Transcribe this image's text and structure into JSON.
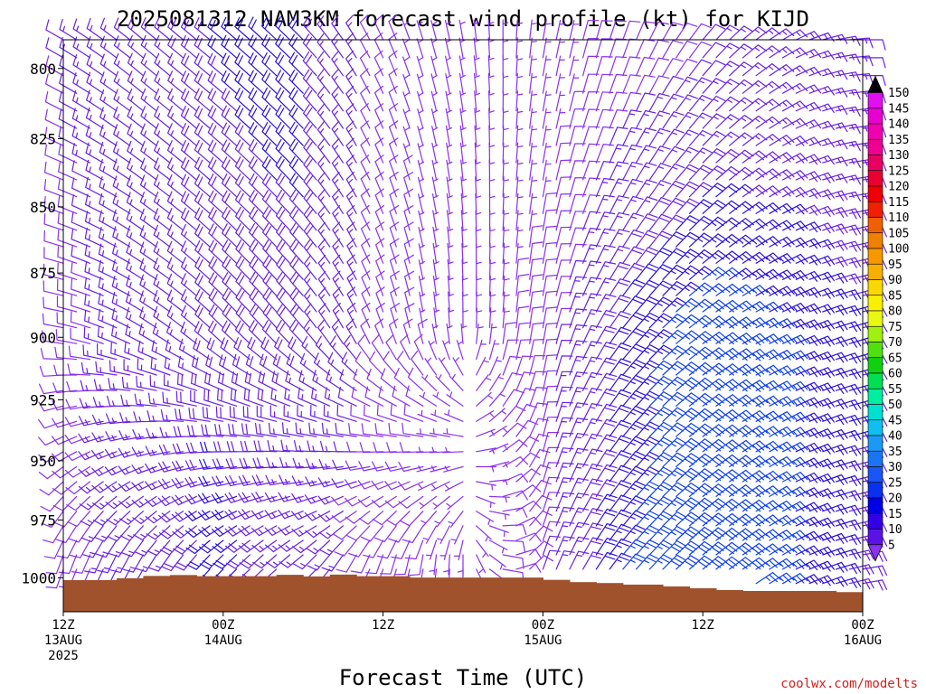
{
  "chart_data": {
    "type": "wind-barb time-pressure cross section",
    "title": "2025081312 NAM3KM forecast wind profile (kt) for KIJD",
    "xlabel": "Forecast Time (UTC)",
    "ylabel": "",
    "y_axis": {
      "scale": "log-pressure",
      "inverted": true,
      "range_hpa": [
        790,
        1015
      ],
      "ticks": [
        "800",
        "825",
        "850",
        "875",
        "900",
        "925",
        "950",
        "975",
        "1000"
      ]
    },
    "x_axis": {
      "range_hours": [
        0,
        60
      ],
      "tick_hours": [
        0,
        12,
        24,
        36,
        48,
        60
      ],
      "ticks": [
        {
          "label1": "12Z",
          "label2": "13AUG",
          "label3": "2025"
        },
        {
          "label1": "00Z",
          "label2": "14AUG",
          "label3": ""
        },
        {
          "label1": "12Z",
          "label2": "",
          "label3": ""
        },
        {
          "label1": "00Z",
          "label2": "15AUG",
          "label3": ""
        },
        {
          "label1": "12Z",
          "label2": "",
          "label3": ""
        },
        {
          "label1": "00Z",
          "label2": "16AUG",
          "label3": ""
        }
      ]
    },
    "barbs": {
      "time_step_hours": 1,
      "pressure_step_hpa": 6.25,
      "pressure_top_hpa": 790,
      "units": "kt",
      "keyframes": [
        {
          "hour": 0,
          "low": {
            "dir": 200,
            "spd": 10
          },
          "mid": {
            "dir": 280,
            "spd": 10
          },
          "high": {
            "dir": 300,
            "spd": 12
          }
        },
        {
          "hour": 6,
          "low": {
            "dir": 210,
            "spd": 15
          },
          "mid": {
            "dir": 300,
            "spd": 15
          },
          "high": {
            "dir": 310,
            "spd": 15
          }
        },
        {
          "hour": 12,
          "low": {
            "dir": 225,
            "spd": 22
          },
          "mid": {
            "dir": 315,
            "spd": 18
          },
          "high": {
            "dir": 310,
            "spd": 20
          }
        },
        {
          "hour": 18,
          "low": {
            "dir": 230,
            "spd": 15
          },
          "mid": {
            "dir": 320,
            "spd": 18
          },
          "high": {
            "dir": 315,
            "spd": 22
          }
        },
        {
          "hour": 24,
          "low": {
            "dir": 200,
            "spd": 10
          },
          "mid": {
            "dir": 340,
            "spd": 10
          },
          "high": {
            "dir": 335,
            "spd": 8
          }
        },
        {
          "hour": 30,
          "low": {
            "dir": 180,
            "spd": 5
          },
          "mid": {
            "dir": 0,
            "spd": 5
          },
          "high": {
            "dir": 350,
            "spd": 5
          }
        },
        {
          "hour": 36,
          "low": {
            "dir": 20,
            "spd": 12
          },
          "mid": {
            "dir": 10,
            "spd": 10
          },
          "high": {
            "dir": 10,
            "spd": 5
          }
        },
        {
          "hour": 42,
          "low": {
            "dir": 40,
            "spd": 25
          },
          "mid": {
            "dir": 40,
            "spd": 22
          },
          "high": {
            "dir": 20,
            "spd": 10
          }
        },
        {
          "hour": 48,
          "low": {
            "dir": 50,
            "spd": 30
          },
          "mid": {
            "dir": 55,
            "spd": 30
          },
          "high": {
            "dir": 40,
            "spd": 12
          }
        },
        {
          "hour": 54,
          "low": {
            "dir": 60,
            "spd": 25
          },
          "mid": {
            "dir": 65,
            "spd": 25
          },
          "high": {
            "dir": 60,
            "spd": 15
          }
        },
        {
          "hour": 60,
          "low": {
            "dir": 80,
            "spd": 18
          },
          "mid": {
            "dir": 75,
            "spd": 20
          },
          "high": {
            "dir": 90,
            "spd": 12
          }
        }
      ]
    },
    "surface_pressure_hpa": [
      {
        "t0": 0,
        "t1": 4,
        "p": 1001
      },
      {
        "t0": 4,
        "t1": 6,
        "p": 1000.2
      },
      {
        "t0": 6,
        "t1": 8,
        "p": 999.2
      },
      {
        "t0": 8,
        "t1": 10,
        "p": 998.8
      },
      {
        "t0": 10,
        "t1": 16,
        "p": 999.3
      },
      {
        "t0": 16,
        "t1": 18,
        "p": 998.7
      },
      {
        "t0": 18,
        "t1": 20,
        "p": 999.4
      },
      {
        "t0": 20,
        "t1": 22,
        "p": 998.6
      },
      {
        "t0": 22,
        "t1": 26,
        "p": 999.3
      },
      {
        "t0": 26,
        "t1": 36,
        "p": 999.9
      },
      {
        "t0": 36,
        "t1": 38,
        "p": 1000.9
      },
      {
        "t0": 38,
        "t1": 40,
        "p": 1001.9
      },
      {
        "t0": 40,
        "t1": 42,
        "p": 1002.3
      },
      {
        "t0": 42,
        "t1": 45,
        "p": 1003.0
      },
      {
        "t0": 45,
        "t1": 47,
        "p": 1003.8
      },
      {
        "t0": 47,
        "t1": 49,
        "p": 1004.6
      },
      {
        "t0": 49,
        "t1": 51,
        "p": 1005.4
      },
      {
        "t0": 51,
        "t1": 58,
        "p": 1005.8
      },
      {
        "t0": 58,
        "t1": 60,
        "p": 1006.3
      }
    ],
    "colorbar": {
      "levels": [
        "5",
        "10",
        "15",
        "20",
        "25",
        "30",
        "35",
        "40",
        "45",
        "50",
        "55",
        "60",
        "65",
        "70",
        "75",
        "80",
        "85",
        "90",
        "95",
        "100",
        "105",
        "110",
        "115",
        "120",
        "125",
        "130",
        "135",
        "140",
        "145",
        "150"
      ],
      "colors": [
        "#7a1cf0",
        "#5a12e6",
        "#3200e6",
        "#0000e6",
        "#0a30f0",
        "#1a55f5",
        "#1a75f5",
        "#1a9af5",
        "#10bff0",
        "#00e0d0",
        "#00eea0",
        "#00e050",
        "#10d010",
        "#50e010",
        "#a0f010",
        "#e8f810",
        "#f8f000",
        "#f8d800",
        "#f8b000",
        "#f89800",
        "#f08000",
        "#f06000",
        "#f02000",
        "#f00000",
        "#e80030",
        "#e80060",
        "#f00090",
        "#f000b0",
        "#e800d0",
        "#e010f0"
      ],
      "below_color": "#8a30f0",
      "above_color": "#000000"
    },
    "barb_color_scale": [
      {
        "kt": 0,
        "color": "#8a30f0"
      },
      {
        "kt": 12,
        "color": "#6a20e6"
      },
      {
        "kt": 20,
        "color": "#2a10e0"
      },
      {
        "kt": 25,
        "color": "#1040f0"
      },
      {
        "kt": 32,
        "color": "#1880f0"
      }
    ],
    "terrain_color": "#a0522d"
  },
  "credit": "coolwx.com/modelts"
}
